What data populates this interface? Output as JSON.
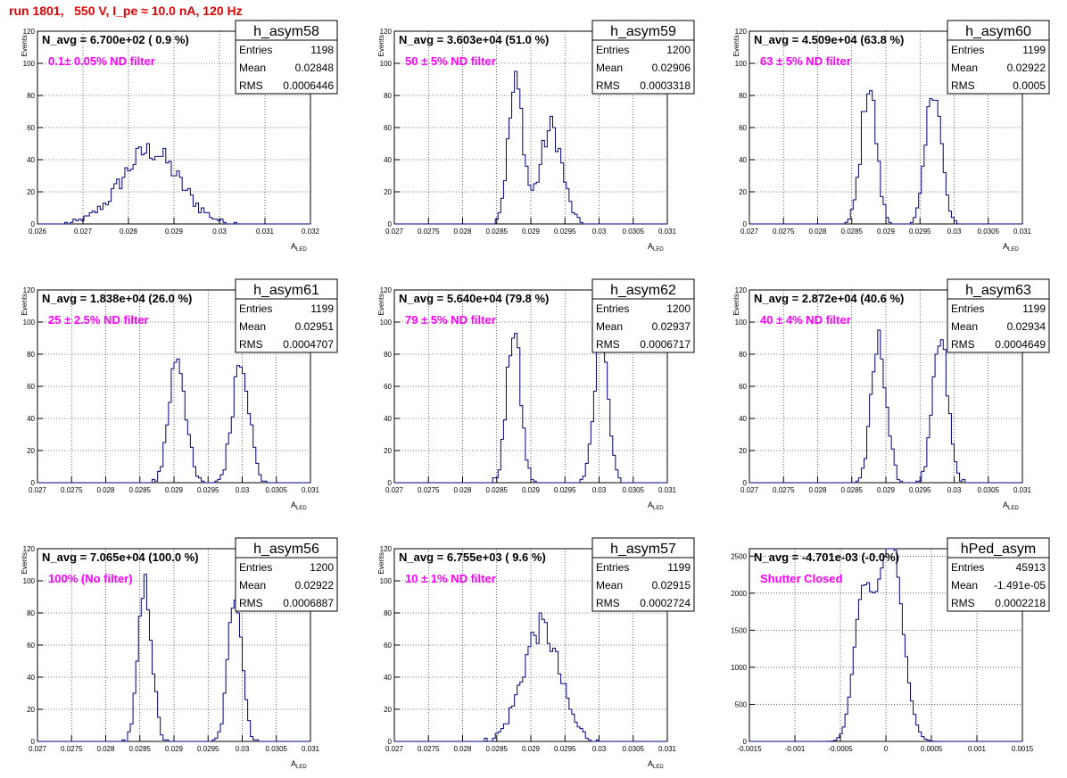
{
  "page_title": "run 1801,   550 V, I_pe ≈ 10.0 nA, 120 Hz",
  "chart_data": [
    {
      "type": "histogram",
      "stat_title": "h_asym58",
      "navg": "N_avg = 6.700e+02 ( 0.9 %)",
      "filter": "0.1± 0.05% ND filter",
      "entries": "1198",
      "mean": "0.02848",
      "rms": "0.0006446",
      "xlabel": "A LED",
      "ylabel": "Events",
      "xlim": [
        0.026,
        0.032
      ],
      "ylim": [
        0,
        120
      ],
      "xticks": [
        "0.026",
        "0.027",
        "0.028",
        "0.029",
        "0.03",
        "0.031",
        "0.032"
      ],
      "peaks": [
        {
          "mu": 0.02848,
          "sigma": 0.00063,
          "area": 1198
        }
      ]
    },
    {
      "type": "histogram",
      "stat_title": "h_asym59",
      "navg": "N_avg = 3.603e+04 (51.0 %)",
      "filter": "50 ± 5% ND filter",
      "entries": "1200",
      "mean": "0.02906",
      "rms": "0.0003318",
      "xlabel": "A LED",
      "ylabel": "Events",
      "xlim": [
        0.027,
        0.031
      ],
      "ylim": [
        0,
        120
      ],
      "xticks": [
        "0.027",
        "0.0275",
        "0.028",
        "0.0285",
        "0.029",
        "0.0295",
        "0.03",
        "0.0305",
        "0.031"
      ],
      "peaks": [
        {
          "mu": 0.02878,
          "sigma": 0.00011,
          "area": 600
        },
        {
          "mu": 0.0293,
          "sigma": 0.00016,
          "area": 600
        }
      ]
    },
    {
      "type": "histogram",
      "stat_title": "h_asym60",
      "navg": "N_avg = 4.509e+04 (63.8 %)",
      "filter": "63 ± 5% ND filter",
      "entries": "1199",
      "mean": "0.02922",
      "rms": "0.0005",
      "xlabel": "A LED",
      "ylabel": "Events",
      "xlim": [
        0.027,
        0.031
      ],
      "ylim": [
        0,
        120
      ],
      "xticks": [
        "0.027",
        "0.0275",
        "0.028",
        "0.0285",
        "0.029",
        "0.0295",
        "0.03",
        "0.0305",
        "0.031"
      ],
      "peaks": [
        {
          "mu": 0.02875,
          "sigma": 0.00011,
          "area": 600
        },
        {
          "mu": 0.0297,
          "sigma": 0.00011,
          "area": 600
        }
      ]
    },
    {
      "type": "histogram",
      "stat_title": "h_asym61",
      "navg": "N_avg = 1.838e+04 (26.0 %)",
      "filter": "25 ± 2.5% ND filter",
      "entries": "1199",
      "mean": "0.02951",
      "rms": "0.0004707",
      "xlabel": "A LED",
      "ylabel": "Events",
      "xlim": [
        0.027,
        0.031
      ],
      "ylim": [
        0,
        120
      ],
      "xticks": [
        "0.027",
        "0.0275",
        "0.028",
        "0.0285",
        "0.029",
        "0.0295",
        "0.03",
        "0.0305",
        "0.031"
      ],
      "peaks": [
        {
          "mu": 0.02905,
          "sigma": 0.00012,
          "area": 600
        },
        {
          "mu": 0.02998,
          "sigma": 0.00012,
          "area": 600
        }
      ]
    },
    {
      "type": "histogram",
      "stat_title": "h_asym62",
      "navg": "N_avg = 5.640e+04 (79.8 %)",
      "filter": "79 ± 5% ND filter",
      "entries": "1200",
      "mean": "0.02937",
      "rms": "0.0006717",
      "xlabel": "A LED",
      "ylabel": "Events",
      "xlim": [
        0.027,
        0.031
      ],
      "ylim": [
        0,
        120
      ],
      "xticks": [
        "0.027",
        "0.0275",
        "0.028",
        "0.0285",
        "0.029",
        "0.0295",
        "0.03",
        "0.0305",
        "0.031"
      ],
      "peaks": [
        {
          "mu": 0.02875,
          "sigma": 0.0001,
          "area": 600
        },
        {
          "mu": 0.03003,
          "sigma": 0.0001,
          "area": 600
        }
      ]
    },
    {
      "type": "histogram",
      "stat_title": "h_asym63",
      "navg": "N_avg = 2.872e+04 (40.6 %)",
      "filter": "40 ± 4% ND filter",
      "entries": "1199",
      "mean": "0.02934",
      "rms": "0.0004649",
      "xlabel": "A LED",
      "ylabel": "Events",
      "xlim": [
        0.027,
        0.031
      ],
      "ylim": [
        0,
        120
      ],
      "xticks": [
        "0.027",
        "0.0275",
        "0.028",
        "0.0285",
        "0.029",
        "0.0295",
        "0.03",
        "0.0305",
        "0.031"
      ],
      "peaks": [
        {
          "mu": 0.0289,
          "sigma": 0.00011,
          "area": 600
        },
        {
          "mu": 0.0298,
          "sigma": 0.00011,
          "area": 600
        }
      ]
    },
    {
      "type": "histogram",
      "stat_title": "h_asym56",
      "navg": "N_avg = 7.065e+04 (100.0 %)",
      "filter": "100% (No filter)",
      "entries": "1200",
      "mean": "0.02922",
      "rms": "0.0006887",
      "xlabel": "A LED",
      "ylabel": "Events",
      "xlim": [
        0.027,
        0.031
      ],
      "ylim": [
        0,
        120
      ],
      "xticks": [
        "0.027",
        "0.0275",
        "0.028",
        "0.0285",
        "0.029",
        "0.0295",
        "0.03",
        "0.0305",
        "0.031"
      ],
      "peaks": [
        {
          "mu": 0.02858,
          "sigma": 0.0001,
          "area": 600
        },
        {
          "mu": 0.0299,
          "sigma": 0.0001,
          "area": 600
        }
      ]
    },
    {
      "type": "histogram",
      "stat_title": "h_asym57",
      "navg": "N_avg = 6.755e+03 ( 9.6 %)",
      "filter": "10 ± 1% ND filter",
      "entries": "1199",
      "mean": "0.02915",
      "rms": "0.0002724",
      "xlabel": "A LED",
      "ylabel": "Events",
      "xlim": [
        0.027,
        0.031
      ],
      "ylim": [
        0,
        120
      ],
      "xticks": [
        "0.027",
        "0.0275",
        "0.028",
        "0.0285",
        "0.029",
        "0.0295",
        "0.03",
        "0.0305",
        "0.031"
      ],
      "peaks": [
        {
          "mu": 0.02915,
          "sigma": 0.00027,
          "area": 1199
        }
      ]
    },
    {
      "type": "histogram",
      "stat_title": "hPed_asym",
      "navg": "N_avg = -4.701e-03 (-0.0%)",
      "filter": "Shutter Closed",
      "entries": "45913",
      "mean": "-1.491e-05",
      "rms": "0.0002218",
      "xlabel": "",
      "ylabel": "",
      "xlim": [
        -0.0015,
        0.0015
      ],
      "ylim": [
        0,
        2600
      ],
      "xticks": [
        "-0.0015",
        "-0.001",
        "-0.0005",
        "0",
        "0.0005",
        "0.001",
        "0.0015"
      ],
      "yticks": [
        "0",
        "500",
        "1000",
        "1500",
        "2000",
        "2500"
      ],
      "peaks": [
        {
          "mu": -0.00025,
          "sigma": 0.0001,
          "area": 16000
        },
        {
          "mu": 5e-05,
          "sigma": 0.00013,
          "area": 29913
        }
      ]
    }
  ]
}
